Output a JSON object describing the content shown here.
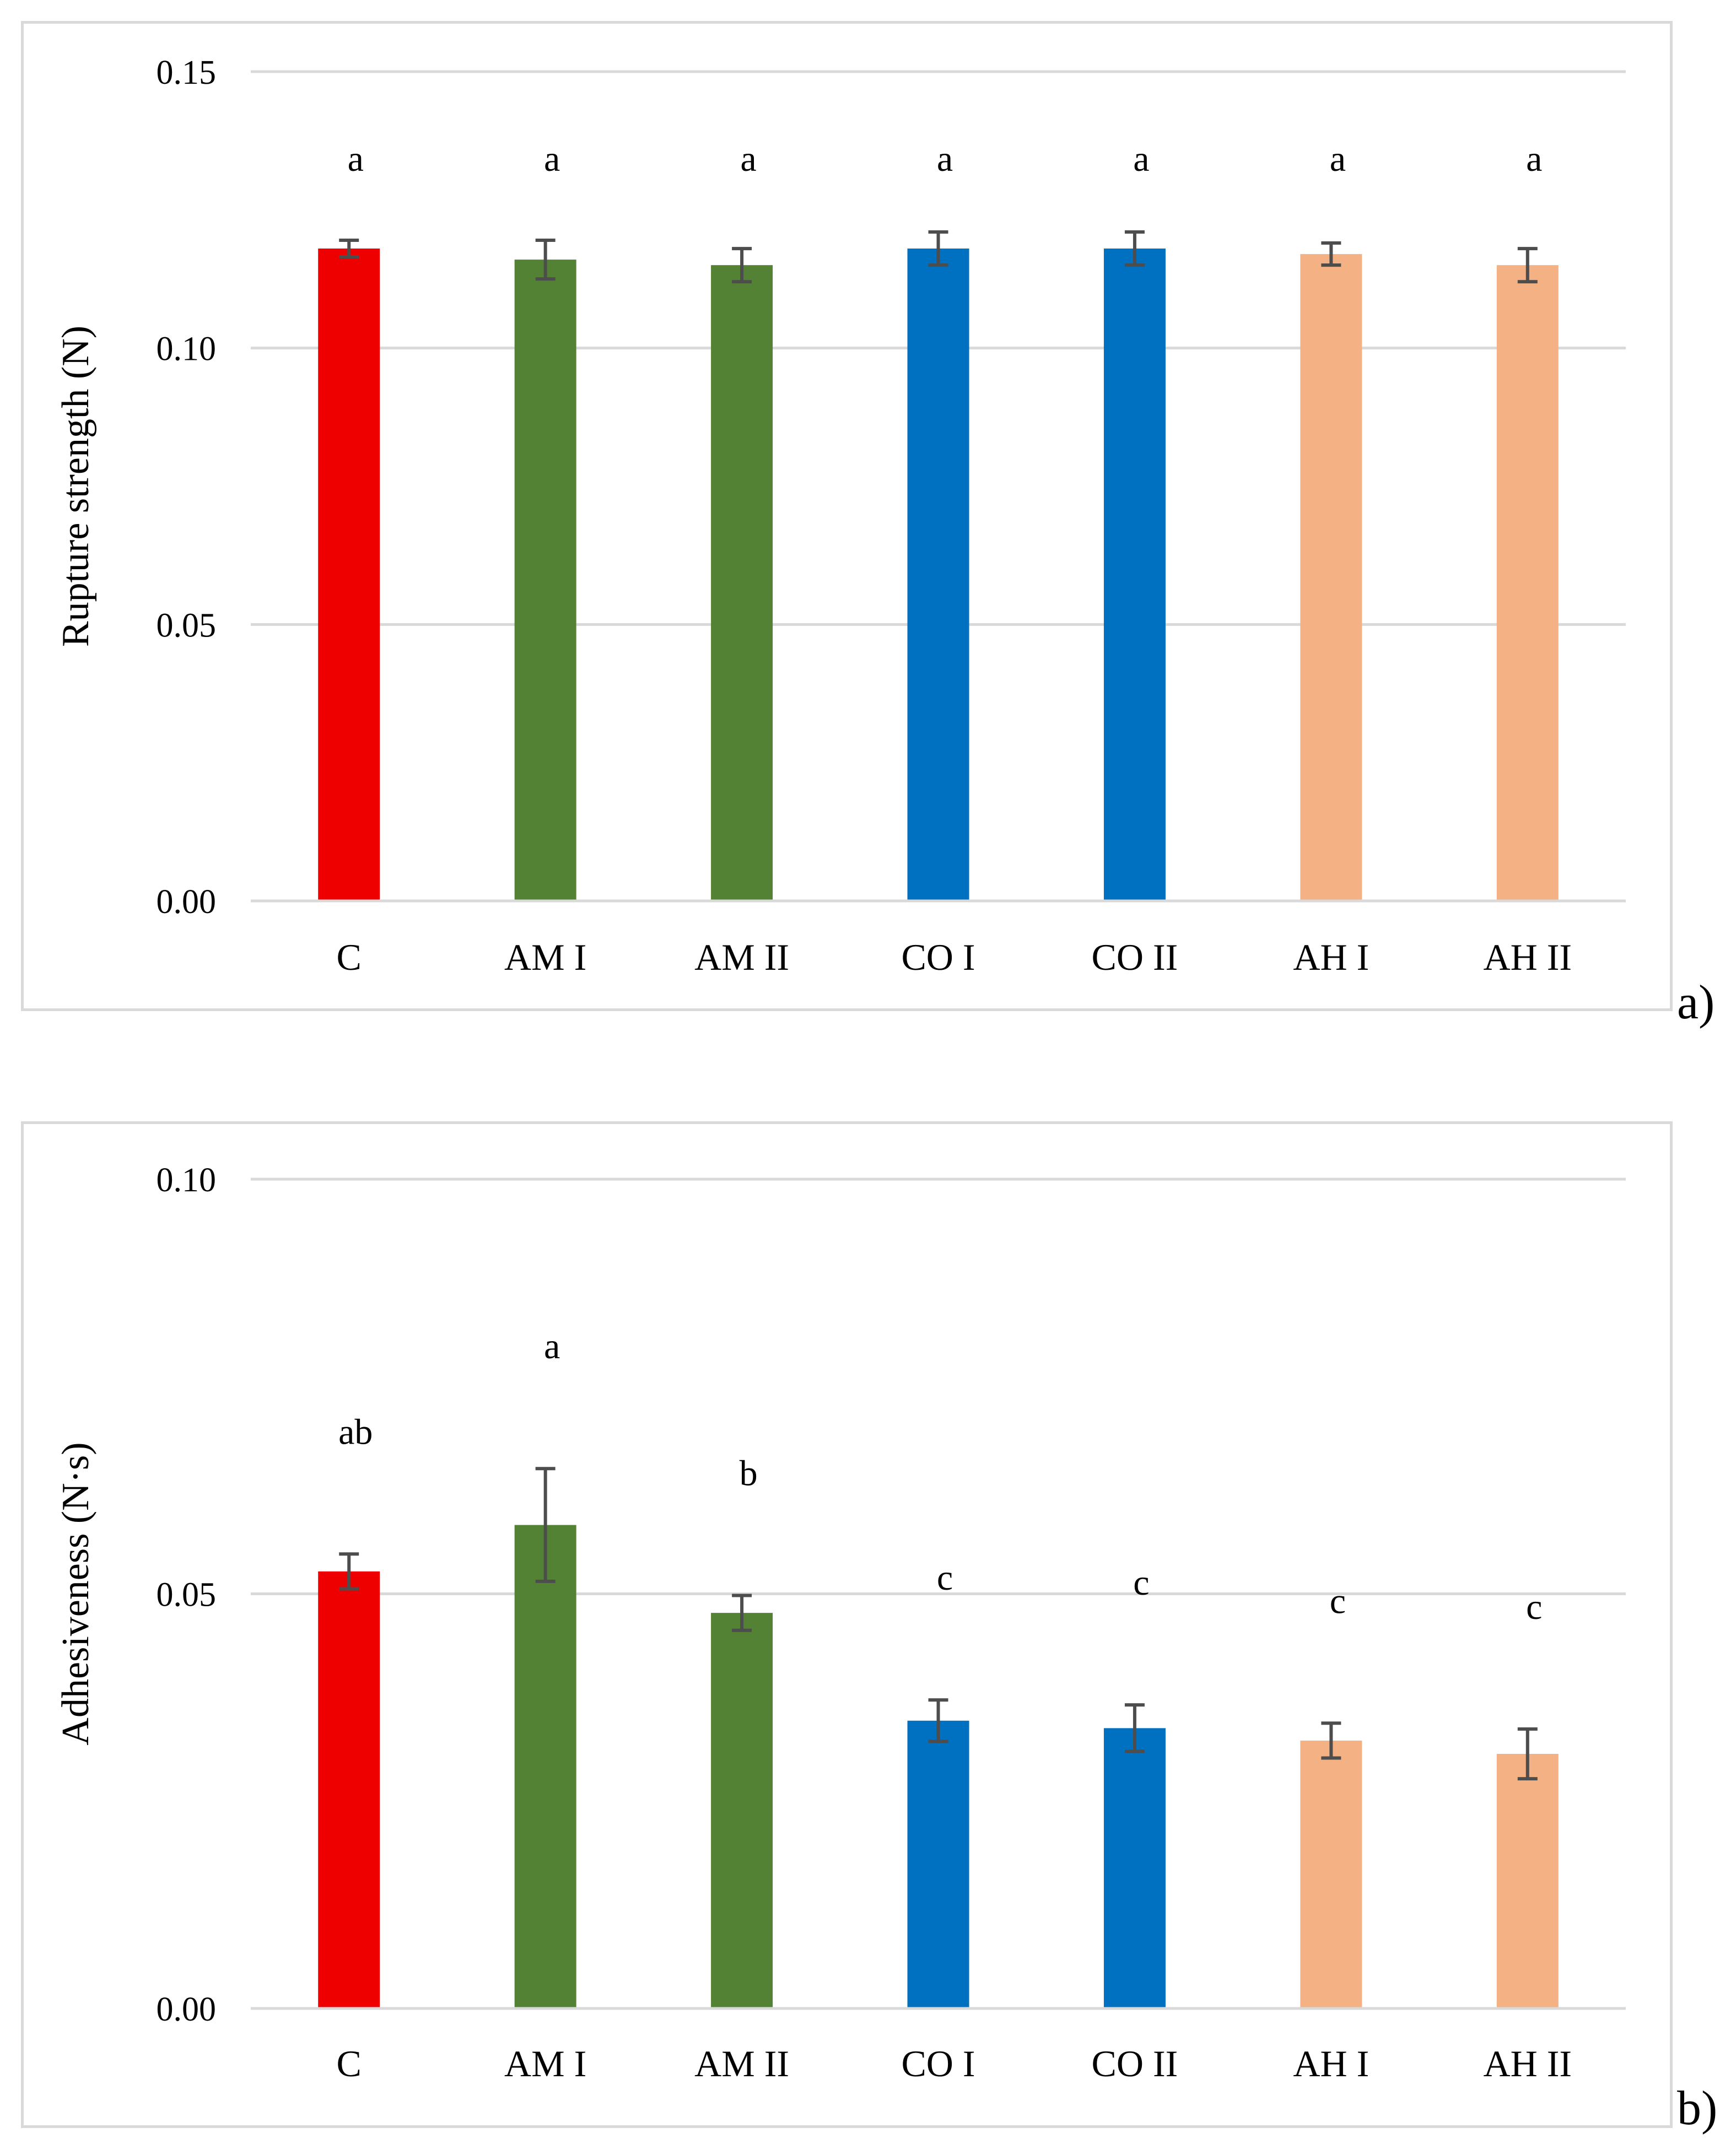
{
  "chart_data": [
    {
      "type": "bar",
      "panel_label": "a)",
      "ylabel": "Rupture strength (N)",
      "xlabel": "",
      "ylim": [
        0,
        0.15
      ],
      "yticks": [
        "0.00",
        "0.05",
        "0.10",
        "0.15"
      ],
      "ytick_values": [
        0,
        0.05,
        0.1,
        0.15
      ],
      "categories": [
        "C",
        "AM I",
        "AM II",
        "CO I",
        "CO II",
        "AH I",
        "AH II"
      ],
      "values": [
        0.118,
        0.116,
        0.115,
        0.118,
        0.118,
        0.117,
        0.115
      ],
      "errors": [
        0.0015,
        0.0035,
        0.003,
        0.003,
        0.003,
        0.002,
        0.003
      ],
      "significance_letters": [
        "a",
        "a",
        "a",
        "a",
        "a",
        "a",
        "a"
      ],
      "grid": true
    },
    {
      "type": "bar",
      "panel_label": "b)",
      "ylabel": "Adhesiveness (N·s)",
      "xlabel": "",
      "ylim": [
        0,
        0.1
      ],
      "yticks": [
        "0.00",
        "0.05",
        "0.10"
      ],
      "ytick_values": [
        0,
        0.05,
        0.1
      ],
      "categories": [
        "C",
        "AM I",
        "AM II",
        "CO I",
        "CO II",
        "AH I",
        "AH II"
      ],
      "values": [
        0.0527,
        0.0583,
        0.0477,
        0.0347,
        0.0338,
        0.0323,
        0.0307
      ],
      "errors": [
        0.0021,
        0.0068,
        0.0021,
        0.0025,
        0.0028,
        0.0021,
        0.003
      ],
      "significance_letters": [
        "ab",
        "a",
        "b",
        "c",
        "c",
        "c",
        "c"
      ],
      "grid": true
    }
  ],
  "colors": {
    "C": "#ee0000",
    "AM I": "#548235",
    "AM II": "#548235",
    "CO I": "#0070c0",
    "CO II": "#0070c0",
    "AH I": "#f4b183",
    "AH II": "#f4b183",
    "grid": "#d9d9d9",
    "error_bar": "#4d4d4d"
  }
}
